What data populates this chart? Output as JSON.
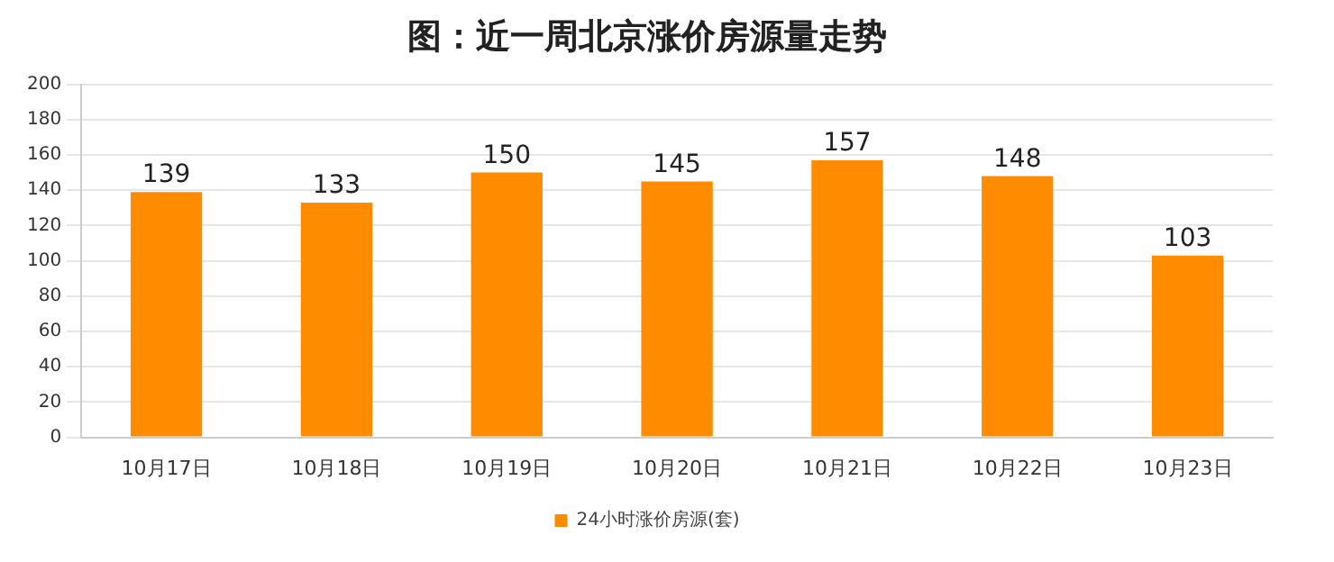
{
  "chart_data": {
    "type": "bar",
    "title": "图：近一周北京涨价房源量走势",
    "categories": [
      "10月17日",
      "10月18日",
      "10月19日",
      "10月20日",
      "10月21日",
      "10月22日",
      "10月23日"
    ],
    "series": [
      {
        "name": "24小时涨价房源(套)",
        "color": "#ff8c00",
        "values": [
          139,
          133,
          150,
          145,
          157,
          148,
          103
        ]
      }
    ],
    "ylim": [
      0,
      200
    ],
    "yticks": [
      0,
      20,
      40,
      60,
      80,
      100,
      120,
      140,
      160,
      180,
      200
    ],
    "grid": "y",
    "legend": "bottom",
    "data_labels": true
  }
}
